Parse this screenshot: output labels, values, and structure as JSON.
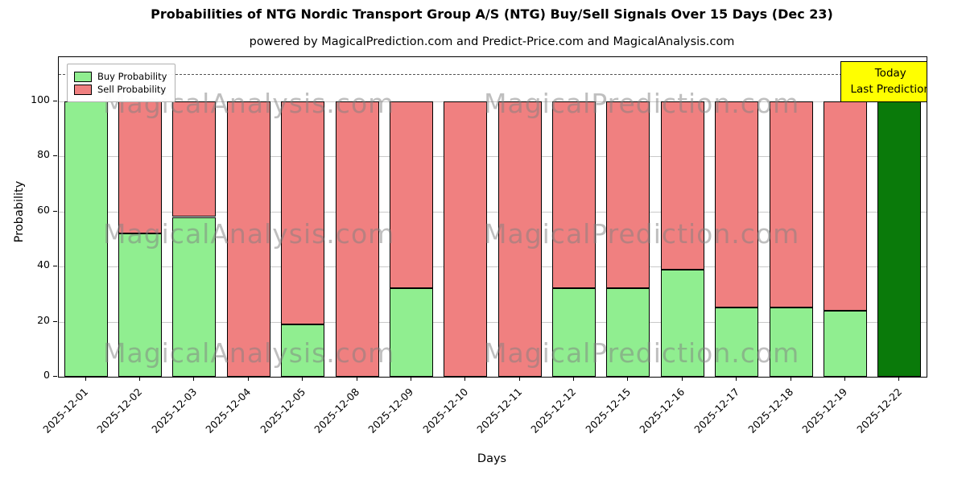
{
  "title": "Probabilities of NTG Nordic Transport Group A/S (NTG) Buy/Sell Signals Over 15 Days (Dec 23)",
  "subtitle": "powered by MagicalPrediction.com and Predict-Price.com and MagicalAnalysis.com",
  "xlabel": "Days",
  "ylabel": "Probability",
  "legend": {
    "buy_label": "Buy Probability",
    "sell_label": "Sell Probability"
  },
  "annotation": {
    "line1": "Today",
    "line2": "Last Prediction",
    "bg_color": "#ffff00"
  },
  "watermarks": [
    "MagicalAnalysis.com",
    "MagicalPrediction.com"
  ],
  "colors": {
    "buy": "#90ee90",
    "sell": "#f08080",
    "today": "#0a7a0a",
    "edge": "#000000",
    "grid": "#c9c9c9"
  },
  "chart_data": {
    "type": "bar",
    "stacked": true,
    "categories": [
      "2025-12-01",
      "2025-12-02",
      "2025-12-03",
      "2025-12-04",
      "2025-12-05",
      "2025-12-08",
      "2025-12-09",
      "2025-12-10",
      "2025-12-11",
      "2025-12-12",
      "2025-12-15",
      "2025-12-16",
      "2025-12-17",
      "2025-12-18",
      "2025-12-19",
      "2025-12-22"
    ],
    "series": [
      {
        "name": "Buy Probability",
        "values": [
          100,
          52,
          58,
          0,
          19,
          0,
          32,
          0,
          0,
          32,
          32,
          39,
          25,
          25,
          24,
          100
        ]
      },
      {
        "name": "Sell Probability",
        "values": [
          0,
          48,
          42,
          100,
          81,
          100,
          68,
          100,
          100,
          68,
          68,
          61,
          75,
          75,
          76,
          0
        ]
      }
    ],
    "today_index": 15,
    "y_ticks": [
      0,
      20,
      40,
      60,
      80,
      100
    ],
    "ylim": [
      0,
      116
    ],
    "dashed_line_y": 110,
    "grid": true,
    "legend_position": "upper left",
    "xlabel": "Days",
    "ylabel": "Probability",
    "title": "Probabilities of NTG Nordic Transport Group A/S (NTG) Buy/Sell Signals Over 15 Days (Dec 23)"
  }
}
